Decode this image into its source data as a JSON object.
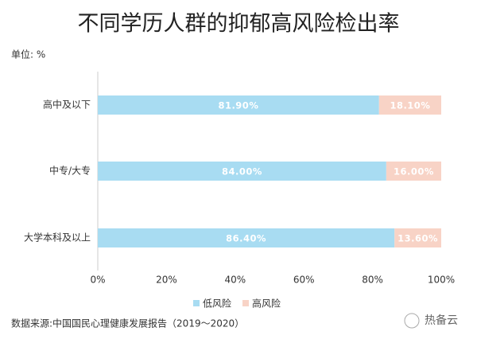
{
  "chart_data": {
    "type": "stacked-bar-horizontal",
    "title": "不同学历人群的抑郁高风险检出率",
    "unit": "单位: %",
    "categories": [
      "高中及以下",
      "中专/大专",
      "大学本科及以上"
    ],
    "series": [
      {
        "name": "低风险",
        "color": "#a8dcf2",
        "values": [
          81.9,
          84.0,
          86.4
        ],
        "value_labels": [
          "81.90%",
          "84.00%",
          "86.40%"
        ]
      },
      {
        "name": "高风险",
        "color": "#f8d3c6",
        "values": [
          18.1,
          16.0,
          13.6
        ],
        "value_labels": [
          "18.10%",
          "16.00%",
          "13.60%"
        ]
      }
    ],
    "xlim": [
      0,
      100
    ],
    "xticks": [
      {
        "value": 0,
        "label": "0%"
      },
      {
        "value": 20,
        "label": "20%"
      },
      {
        "value": 40,
        "label": "40%"
      },
      {
        "value": 60,
        "label": "60%"
      },
      {
        "value": 80,
        "label": "80%"
      },
      {
        "value": 100,
        "label": "100%"
      }
    ],
    "source": "数据来源:中国国民心理健康发展报告（2019～2020）",
    "watermark": "热备云"
  }
}
